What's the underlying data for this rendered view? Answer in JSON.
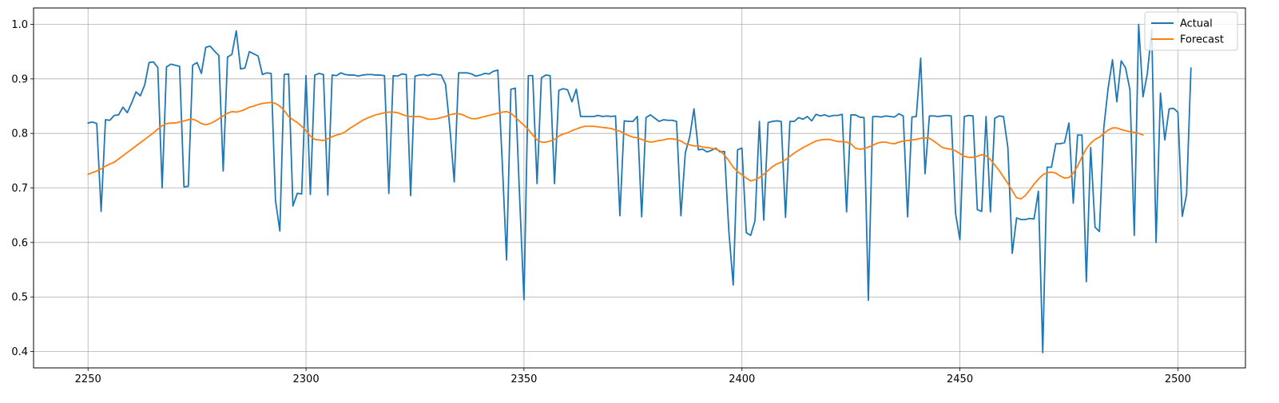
{
  "chart_data": {
    "type": "line",
    "title": "",
    "xlabel": "",
    "ylabel": "",
    "xlim": [
      2237.5,
      2515.5
    ],
    "ylim": [
      0.37,
      1.03
    ],
    "grid": true,
    "legend_position": "top-right",
    "xticks": [
      2250,
      2300,
      2350,
      2400,
      2450,
      2500
    ],
    "yticks": [
      0.4,
      0.5,
      0.6,
      0.7,
      0.8,
      0.9,
      1.0
    ],
    "ytick_labels": [
      "0.4",
      "0.5",
      "0.6",
      "0.7",
      "0.8",
      "0.9",
      "1.0"
    ],
    "x_start": 2250,
    "x_step": 1,
    "series": [
      {
        "name": "Actual",
        "color": "#1f77b4",
        "values": [
          0.819,
          0.821,
          0.818,
          0.657,
          0.825,
          0.824,
          0.833,
          0.834,
          0.848,
          0.838,
          0.856,
          0.876,
          0.869,
          0.889,
          0.93,
          0.931,
          0.921,
          0.7,
          0.922,
          0.927,
          0.925,
          0.923,
          0.702,
          0.703,
          0.925,
          0.93,
          0.91,
          0.958,
          0.96,
          0.951,
          0.943,
          0.731,
          0.94,
          0.945,
          0.988,
          0.918,
          0.92,
          0.95,
          0.946,
          0.942,
          0.908,
          0.911,
          0.91,
          0.677,
          0.621,
          0.908,
          0.909,
          0.667,
          0.69,
          0.689,
          0.906,
          0.688,
          0.907,
          0.91,
          0.908,
          0.687,
          0.907,
          0.906,
          0.911,
          0.908,
          0.907,
          0.907,
          0.905,
          0.907,
          0.908,
          0.908,
          0.907,
          0.907,
          0.906,
          0.69,
          0.906,
          0.905,
          0.909,
          0.908,
          0.686,
          0.905,
          0.907,
          0.908,
          0.906,
          0.909,
          0.908,
          0.907,
          0.89,
          0.81,
          0.711,
          0.911,
          0.911,
          0.911,
          0.909,
          0.905,
          0.907,
          0.91,
          0.909,
          0.914,
          0.916,
          0.75,
          0.568,
          0.881,
          0.883,
          0.683,
          0.495,
          0.906,
          0.906,
          0.708,
          0.902,
          0.907,
          0.906,
          0.708,
          0.879,
          0.882,
          0.88,
          0.858,
          0.881,
          0.831,
          0.831,
          0.831,
          0.831,
          0.833,
          0.831,
          0.832,
          0.831,
          0.832,
          0.649,
          0.823,
          0.822,
          0.822,
          0.831,
          0.647,
          0.829,
          0.834,
          0.828,
          0.822,
          0.825,
          0.824,
          0.824,
          0.822,
          0.649,
          0.764,
          0.793,
          0.845,
          0.77,
          0.771,
          0.766,
          0.769,
          0.773,
          0.766,
          0.767,
          0.62,
          0.522,
          0.77,
          0.773,
          0.618,
          0.613,
          0.64,
          0.822,
          0.641,
          0.82,
          0.822,
          0.823,
          0.822,
          0.646,
          0.822,
          0.822,
          0.829,
          0.826,
          0.831,
          0.823,
          0.835,
          0.832,
          0.834,
          0.831,
          0.833,
          0.833,
          0.835,
          0.656,
          0.834,
          0.834,
          0.83,
          0.829,
          0.494,
          0.831,
          0.831,
          0.83,
          0.832,
          0.831,
          0.83,
          0.836,
          0.832,
          0.647,
          0.83,
          0.831,
          0.938,
          0.726,
          0.832,
          0.832,
          0.831,
          0.832,
          0.833,
          0.832,
          0.653,
          0.605,
          0.831,
          0.833,
          0.832,
          0.66,
          0.657,
          0.831,
          0.656,
          0.828,
          0.832,
          0.831,
          0.774,
          0.58,
          0.645,
          0.642,
          0.642,
          0.644,
          0.643,
          0.694,
          0.398,
          0.738,
          0.738,
          0.781,
          0.781,
          0.783,
          0.819,
          0.672,
          0.797,
          0.797,
          0.528,
          0.774,
          0.628,
          0.62,
          0.81,
          0.883,
          0.935,
          0.858,
          0.933,
          0.92,
          0.88,
          0.613,
          1.0,
          0.867,
          0.91,
          0.99,
          0.6,
          0.874,
          0.788,
          0.845,
          0.846,
          0.839,
          0.648,
          0.688,
          0.92
        ]
      },
      {
        "name": "Forecast",
        "color": "#ff7f0e",
        "values": [
          0.725,
          0.728,
          0.731,
          0.735,
          0.74,
          0.744,
          0.747,
          0.753,
          0.759,
          0.765,
          0.771,
          0.777,
          0.783,
          0.789,
          0.795,
          0.801,
          0.808,
          0.814,
          0.818,
          0.819,
          0.819,
          0.821,
          0.823,
          0.825,
          0.826,
          0.823,
          0.818,
          0.816,
          0.818,
          0.822,
          0.827,
          0.832,
          0.837,
          0.84,
          0.839,
          0.841,
          0.844,
          0.848,
          0.85,
          0.853,
          0.855,
          0.856,
          0.857,
          0.855,
          0.85,
          0.842,
          0.831,
          0.825,
          0.82,
          0.813,
          0.805,
          0.795,
          0.789,
          0.788,
          0.787,
          0.79,
          0.794,
          0.797,
          0.799,
          0.803,
          0.809,
          0.814,
          0.819,
          0.824,
          0.828,
          0.831,
          0.834,
          0.836,
          0.838,
          0.839,
          0.839,
          0.838,
          0.835,
          0.832,
          0.831,
          0.831,
          0.831,
          0.829,
          0.826,
          0.826,
          0.827,
          0.829,
          0.831,
          0.834,
          0.836,
          0.836,
          0.834,
          0.83,
          0.827,
          0.827,
          0.829,
          0.831,
          0.833,
          0.835,
          0.837,
          0.839,
          0.84,
          0.837,
          0.83,
          0.822,
          0.815,
          0.807,
          0.797,
          0.788,
          0.784,
          0.784,
          0.786,
          0.789,
          0.795,
          0.799,
          0.801,
          0.805,
          0.808,
          0.811,
          0.813,
          0.813,
          0.813,
          0.812,
          0.811,
          0.81,
          0.809,
          0.806,
          0.804,
          0.8,
          0.796,
          0.793,
          0.792,
          0.789,
          0.786,
          0.784,
          0.785,
          0.787,
          0.788,
          0.79,
          0.79,
          0.789,
          0.786,
          0.781,
          0.779,
          0.777,
          0.777,
          0.775,
          0.774,
          0.773,
          0.771,
          0.768,
          0.76,
          0.75,
          0.738,
          0.73,
          0.724,
          0.718,
          0.713,
          0.715,
          0.719,
          0.725,
          0.732,
          0.739,
          0.744,
          0.747,
          0.752,
          0.758,
          0.764,
          0.769,
          0.774,
          0.778,
          0.782,
          0.786,
          0.788,
          0.789,
          0.789,
          0.787,
          0.785,
          0.785,
          0.784,
          0.781,
          0.773,
          0.771,
          0.772,
          0.775,
          0.778,
          0.782,
          0.784,
          0.784,
          0.782,
          0.781,
          0.784,
          0.786,
          0.787,
          0.788,
          0.789,
          0.791,
          0.792,
          0.791,
          0.786,
          0.78,
          0.774,
          0.772,
          0.771,
          0.768,
          0.763,
          0.758,
          0.756,
          0.756,
          0.758,
          0.761,
          0.759,
          0.752,
          0.742,
          0.732,
          0.72,
          0.708,
          0.695,
          0.682,
          0.68,
          0.686,
          0.696,
          0.707,
          0.716,
          0.724,
          0.728,
          0.729,
          0.727,
          0.722,
          0.718,
          0.719,
          0.727,
          0.74,
          0.757,
          0.772,
          0.782,
          0.789,
          0.793,
          0.8,
          0.806,
          0.81,
          0.81,
          0.807,
          0.805,
          0.803,
          0.802,
          0.8,
          0.797
        ]
      }
    ]
  }
}
